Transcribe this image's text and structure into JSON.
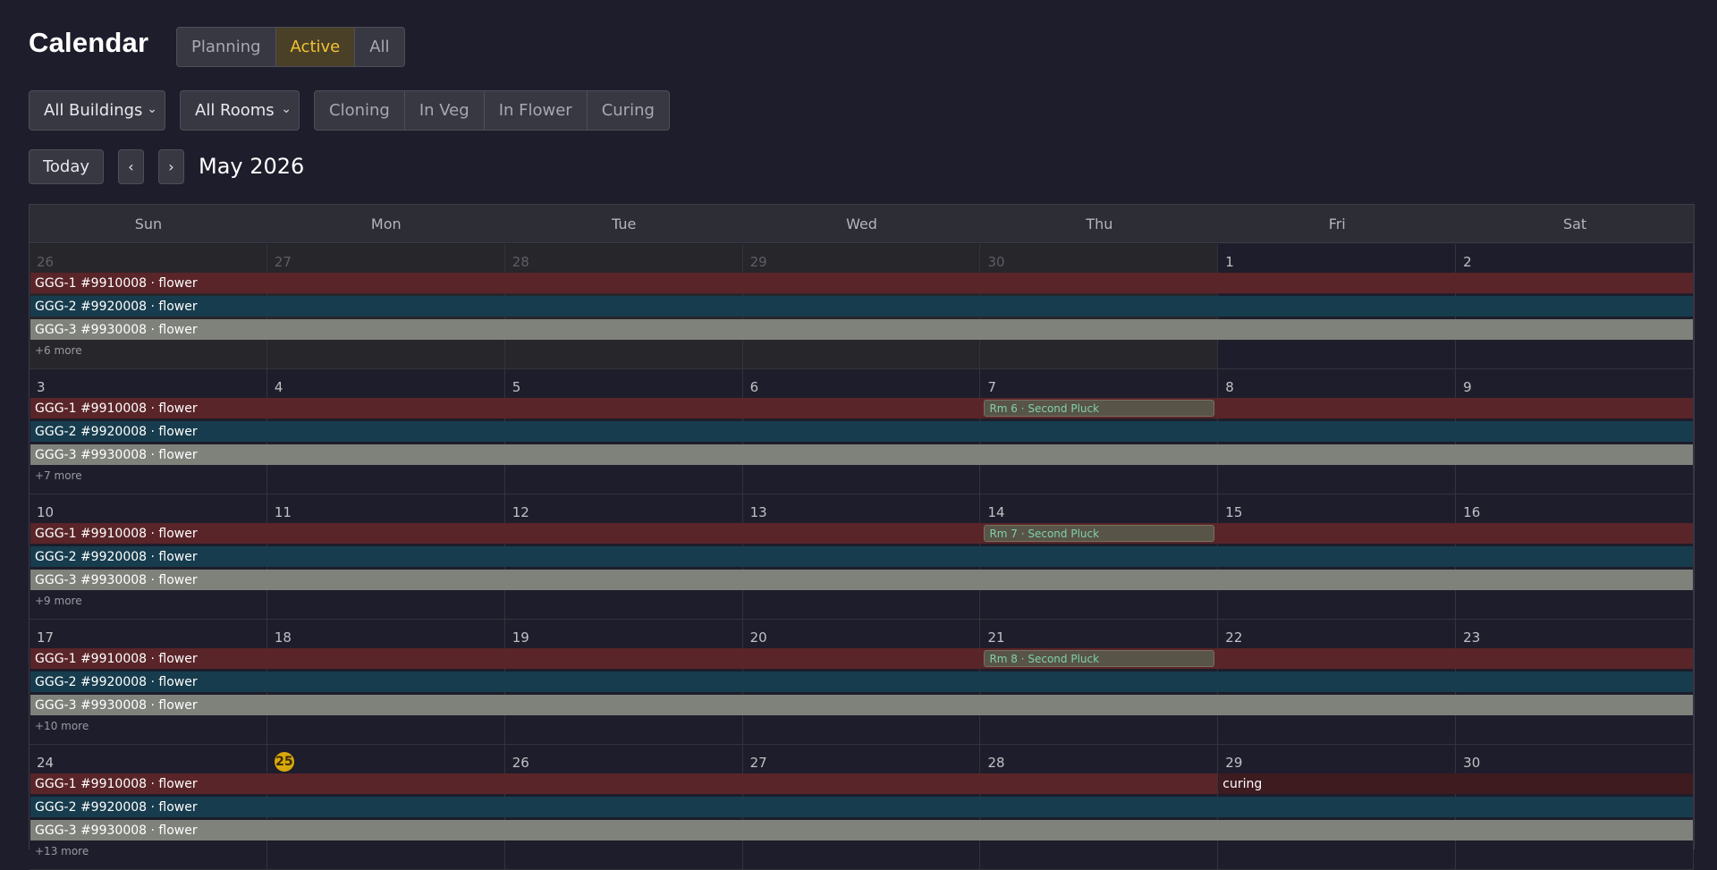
{
  "header": {
    "title": "Calendar"
  },
  "view_modes": [
    {
      "label": "Planning",
      "active": false
    },
    {
      "label": "Active",
      "active": true
    },
    {
      "label": "All",
      "active": false
    }
  ],
  "filters": {
    "buildings": {
      "label": "All Buildings"
    },
    "rooms": {
      "label": "All Rooms"
    },
    "stages": [
      "Cloning",
      "In Veg",
      "In Flower",
      "Curing"
    ]
  },
  "nav": {
    "today_label": "Today",
    "prev_label": "‹",
    "next_label": "›",
    "month_title": "May 2026"
  },
  "calendar": {
    "weekdays": [
      "Sun",
      "Mon",
      "Tue",
      "Wed",
      "Thu",
      "Fri",
      "Sat"
    ],
    "weeks": [
      {
        "days": [
          "26",
          "27",
          "28",
          "29",
          "30",
          "1",
          "2"
        ],
        "more": "+6 more"
      },
      {
        "days": [
          "3",
          "4",
          "5",
          "6",
          "7",
          "8",
          "9"
        ],
        "more": "+7 more"
      },
      {
        "days": [
          "10",
          "11",
          "12",
          "13",
          "14",
          "15",
          "16"
        ],
        "more": "+9 more"
      },
      {
        "days": [
          "17",
          "18",
          "19",
          "20",
          "21",
          "22",
          "23"
        ],
        "more": "+10 more"
      },
      {
        "days": [
          "24",
          "25",
          "26",
          "27",
          "28",
          "29",
          "30"
        ],
        "more": "+13 more"
      }
    ],
    "events": {
      "ggg1": "GGG-1 #9910008 · flower",
      "ggg2": "GGG-2 #9920008 · flower",
      "ggg3": "GGG-3 #9930008 · flower",
      "curing": "curing"
    },
    "plucks": [
      "Rm 6 · Second Pluck",
      "Rm 7 · Second Pluck",
      "Rm 8 · Second Pluck"
    ]
  },
  "colors": {
    "accent": "#f1c232",
    "ggg1": "#5a2529",
    "ggg2": "#173c4d",
    "ggg3": "#7f817b",
    "curing": "#3d1b1f",
    "today": "#d9a80a"
  }
}
